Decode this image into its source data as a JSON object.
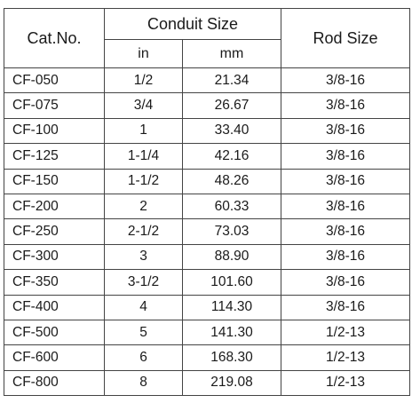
{
  "table": {
    "headers": {
      "cat_no": "Cat.No.",
      "conduit_size": "Conduit Size",
      "in": "in",
      "mm": "mm",
      "rod_size": "Rod Size"
    },
    "rows": [
      {
        "cat": "CF-050",
        "in": "1/2",
        "mm": "21.34",
        "rod": "3/8-16"
      },
      {
        "cat": "CF-075",
        "in": "3/4",
        "mm": "26.67",
        "rod": "3/8-16"
      },
      {
        "cat": "CF-100",
        "in": "1",
        "mm": "33.40",
        "rod": "3/8-16"
      },
      {
        "cat": "CF-125",
        "in": "1-1/4",
        "mm": "42.16",
        "rod": "3/8-16"
      },
      {
        "cat": "CF-150",
        "in": "1-1/2",
        "mm": "48.26",
        "rod": "3/8-16"
      },
      {
        "cat": "CF-200",
        "in": "2",
        "mm": "60.33",
        "rod": "3/8-16"
      },
      {
        "cat": "CF-250",
        "in": "2-1/2",
        "mm": "73.03",
        "rod": "3/8-16"
      },
      {
        "cat": "CF-300",
        "in": "3",
        "mm": "88.90",
        "rod": "3/8-16"
      },
      {
        "cat": "CF-350",
        "in": "3-1/2",
        "mm": "101.60",
        "rod": "3/8-16"
      },
      {
        "cat": "CF-400",
        "in": "4",
        "mm": "114.30",
        "rod": "3/8-16"
      },
      {
        "cat": "CF-500",
        "in": "5",
        "mm": "141.30",
        "rod": "1/2-13"
      },
      {
        "cat": "CF-600",
        "in": "6",
        "mm": "168.30",
        "rod": "1/2-13"
      },
      {
        "cat": "CF-800",
        "in": "8",
        "mm": "219.08",
        "rod": "1/2-13"
      }
    ]
  }
}
